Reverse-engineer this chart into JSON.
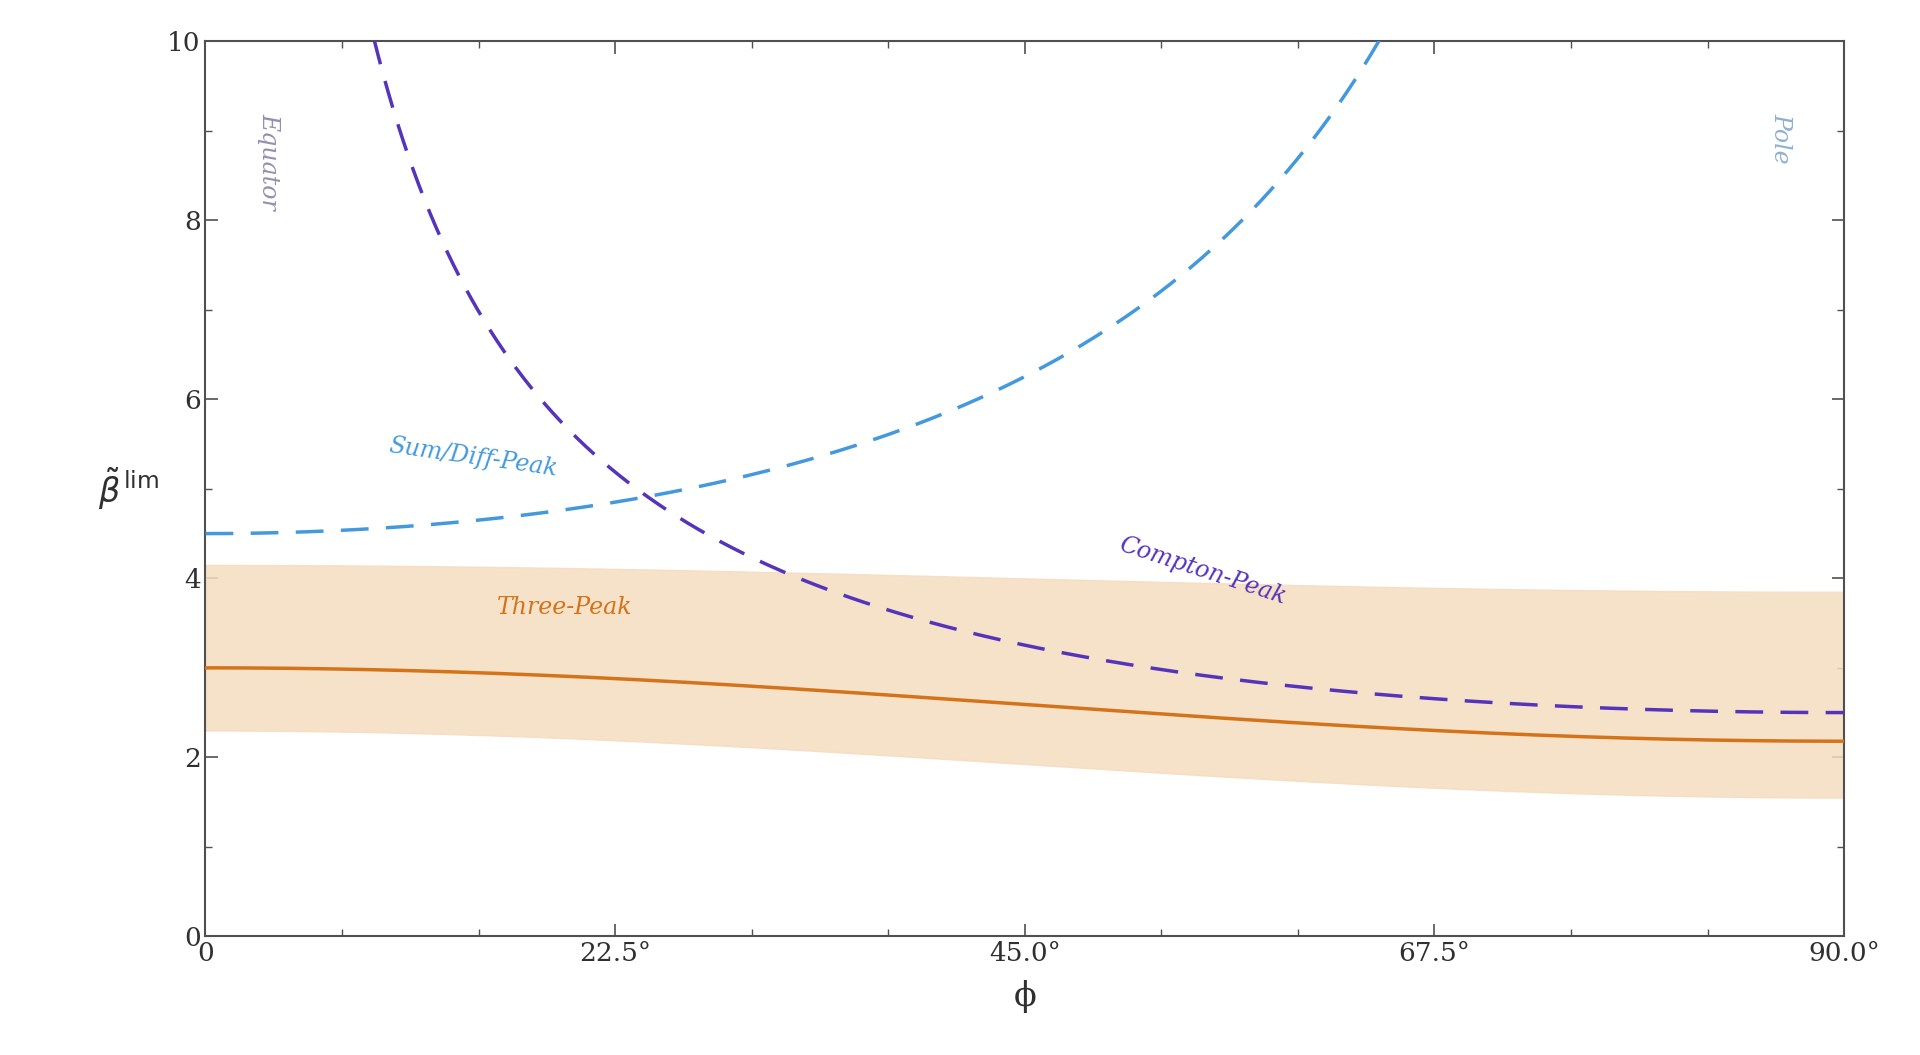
{
  "xlim": [
    0,
    90
  ],
  "ylim": [
    0,
    10
  ],
  "xticks": [
    0,
    22.5,
    45.0,
    67.5,
    90.0
  ],
  "xtick_labels": [
    "0",
    "22.5°",
    "45.0°",
    "67.5°",
    "90.0°"
  ],
  "yticks": [
    0,
    2,
    4,
    6,
    8,
    10
  ],
  "ytick_labels": [
    "0",
    "2",
    "4",
    "6",
    "8",
    "10"
  ],
  "xlabel": "ϕ",
  "equator_label": "Equator",
  "pole_label": "Pole",
  "equator_label_color": "#9090b0",
  "pole_label_color": "#90b0d0",
  "three_peak_label": "Three-Peak",
  "three_peak_color": "#d4731a",
  "three_peak_shade_color": "#f5dcc0",
  "three_peak_shade_alpha": 0.85,
  "sum_diff_peak_label": "Sum/Diff-Peak",
  "sum_diff_peak_color": "#4499dd",
  "compton_peak_label": "Compton-Peak",
  "compton_peak_color": "#5533bb",
  "background_color": "#ffffff",
  "tick_color": "#303030",
  "label_color": "#303030",
  "spine_color": "#505050",
  "tick_fontsize": 19,
  "label_fontsize": 22,
  "annotation_fontsize": 17
}
